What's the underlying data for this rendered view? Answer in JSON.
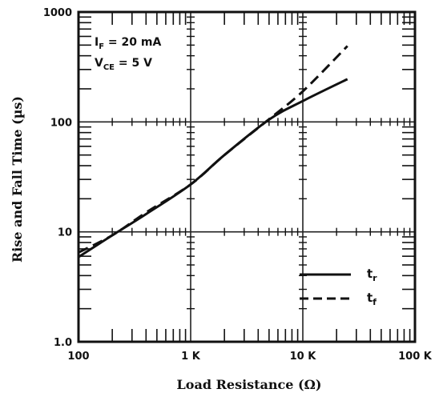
{
  "chart_data": {
    "type": "line",
    "xlabel": "Load Resistance (Ω)",
    "ylabel": "Rise and Fall Time (µs)",
    "xscale": "log",
    "yscale": "log",
    "xlim": [
      100,
      100000
    ],
    "ylim": [
      1,
      1000
    ],
    "x_ticks": [
      {
        "value": 100,
        "label": "100"
      },
      {
        "value": 1000,
        "label": "1 K"
      },
      {
        "value": 10000,
        "label": "10 K"
      },
      {
        "value": 100000,
        "label": "100 K"
      }
    ],
    "y_ticks": [
      {
        "value": 1,
        "label": "1.0"
      },
      {
        "value": 10,
        "label": "10"
      },
      {
        "value": 100,
        "label": "100"
      },
      {
        "value": 1000,
        "label": "1000"
      }
    ],
    "grid": "major decades only",
    "annotation": {
      "line1_main": "I",
      "line1_sub": "F",
      "line1_rest": " = 20 mA",
      "line2_main": "V",
      "line2_sub": "CE",
      "line2_rest": " = 5 V"
    },
    "legend_position": "bottom-right",
    "series": [
      {
        "name_main": "t",
        "name_sub": "r",
        "style": "solid",
        "x": [
          100,
          200,
          400,
          1000,
          2000,
          5000,
          10000,
          25000
        ],
        "y": [
          5.9,
          9.3,
          14.5,
          27,
          50,
          105,
          155,
          245
        ]
      },
      {
        "name_main": "t",
        "name_sub": "f",
        "style": "dashed",
        "x": [
          100,
          200,
          400,
          1000,
          2000,
          5000,
          10000,
          25000
        ],
        "y": [
          6.5,
          9.3,
          15,
          27,
          50,
          106,
          190,
          490
        ]
      }
    ]
  }
}
